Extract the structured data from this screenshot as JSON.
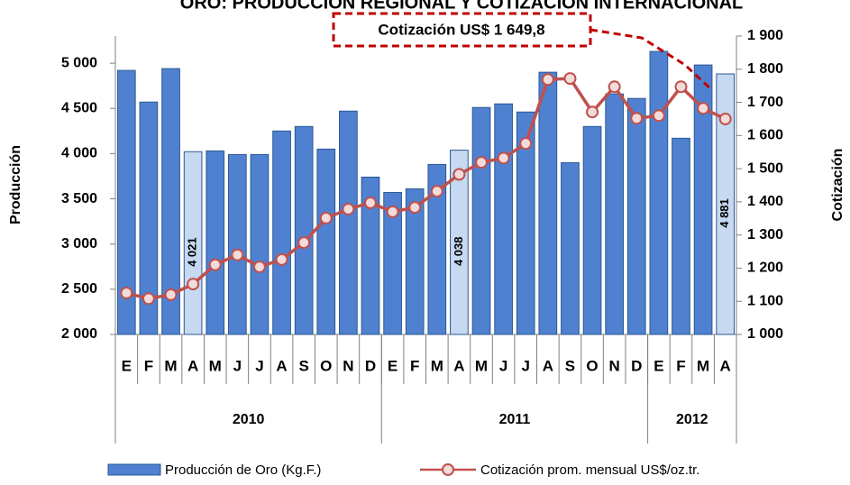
{
  "chart_data": {
    "type": "bar_line",
    "title": "ORO: PRODUCCIÓN REGIONAL Y COTIZACIÓN INTERNACIONAL",
    "ylabel": "Producción",
    "y2label": "Cotización",
    "annotation": "Cotización US$ 1 649,8",
    "groups": [
      {
        "label": "2010",
        "categories": [
          "E",
          "F",
          "M",
          "A",
          "M",
          "J",
          "J",
          "A",
          "S",
          "O",
          "N",
          "D"
        ]
      },
      {
        "label": "2011",
        "categories": [
          "E",
          "F",
          "M",
          "A",
          "M",
          "J",
          "J",
          "A",
          "S",
          "O",
          "N",
          "D"
        ]
      },
      {
        "label": "2012",
        "categories": [
          "E",
          "F",
          "M",
          "A"
        ]
      }
    ],
    "series": [
      {
        "name": "Producción de Oro (Kg.F.)",
        "type": "bar",
        "color": "#4f81d0",
        "border": "#2c5894",
        "colors": [
          "#4f81d0",
          "#4f81d0",
          "#4f81d0",
          "#c6d9f1",
          "#4f81d0",
          "#4f81d0",
          "#4f81d0",
          "#4f81d0",
          "#4f81d0",
          "#4f81d0",
          "#4f81d0",
          "#4f81d0",
          "#4f81d0",
          "#4f81d0",
          "#4f81d0",
          "#c6d9f1",
          "#4f81d0",
          "#4f81d0",
          "#4f81d0",
          "#4f81d0",
          "#4f81d0",
          "#4f81d0",
          "#4f81d0",
          "#4f81d0",
          "#4f81d0",
          "#4f81d0",
          "#4f81d0",
          "#c6d9f1"
        ],
        "values": [
          4920,
          4570,
          4940,
          4021,
          4030,
          3990,
          3990,
          4250,
          4300,
          4050,
          4470,
          3740,
          3570,
          3610,
          3880,
          4038,
          4510,
          4550,
          4460,
          4900,
          3900,
          4300,
          4660,
          4610,
          5130,
          4170,
          4980,
          4881
        ],
        "value_labels": [
          null,
          null,
          null,
          "4 021",
          null,
          null,
          null,
          null,
          null,
          null,
          null,
          null,
          null,
          null,
          null,
          "4 038",
          null,
          null,
          null,
          null,
          null,
          null,
          null,
          null,
          null,
          null,
          null,
          "4 881"
        ]
      },
      {
        "name": "Cotización prom. mensual US$/oz.tr.",
        "type": "line",
        "axis": "y2",
        "color": "#c0504d",
        "marker_fill": "#f2dcdb",
        "values": [
          1125,
          1108,
          1120,
          1152,
          1210,
          1240,
          1204,
          1226,
          1277,
          1351,
          1378,
          1397,
          1370,
          1383,
          1432,
          1483,
          1519,
          1532,
          1576,
          1769,
          1772,
          1671,
          1747,
          1652,
          1660,
          1747,
          1682,
          1650
        ]
      }
    ],
    "ylim": [
      2000,
      5300
    ],
    "yticks": [
      {
        "value": 2000,
        "label": "2 000"
      },
      {
        "value": 2500,
        "label": "2 500"
      },
      {
        "value": 3000,
        "label": "3 000"
      },
      {
        "value": 3500,
        "label": "3 500"
      },
      {
        "value": 4000,
        "label": "4 000"
      },
      {
        "value": 4500,
        "label": "4 500"
      },
      {
        "value": 5000,
        "label": "5 000"
      }
    ],
    "y2lim": [
      1000,
      1900
    ],
    "y2ticks": [
      {
        "value": 1000,
        "label": "1 000"
      },
      {
        "value": 1100,
        "label": "1 100"
      },
      {
        "value": 1200,
        "label": "1 200"
      },
      {
        "value": 1300,
        "label": "1 300"
      },
      {
        "value": 1400,
        "label": "1 400"
      },
      {
        "value": 1500,
        "label": "1 500"
      },
      {
        "value": 1600,
        "label": "1 600"
      },
      {
        "value": 1700,
        "label": "1 700"
      },
      {
        "value": 1800,
        "label": "1 800"
      },
      {
        "value": 1900,
        "label": "1 900"
      }
    ],
    "grid": false
  }
}
